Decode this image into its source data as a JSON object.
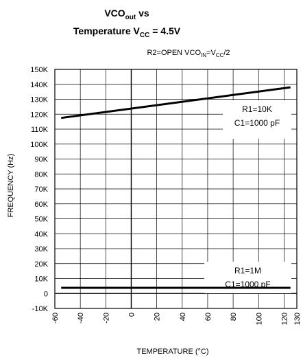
{
  "chart_data": {
    "type": "line",
    "title_line1": "VCO",
    "title_line1_sub": "out",
    "title_line1_tail": " vs",
    "title_line2_pre": "Temperature   V",
    "title_line2_sub": "CC",
    "title_line2_tail": " = 4.5V",
    "subtitle_pre": "R2=OPEN   VCO",
    "subtitle_sub1": "IN",
    "subtitle_mid": "=V",
    "subtitle_sub2": "CC",
    "subtitle_tail": "/2",
    "xlabel": "TEMPERATURE (°C)",
    "ylabel": "FREQUENCY (Hz)",
    "xlim": [
      -60,
      130
    ],
    "ylim": [
      -10000,
      150000
    ],
    "x_ticks": [
      -60,
      -40,
      -20,
      0,
      20,
      40,
      60,
      80,
      100,
      120,
      130
    ],
    "x_tick_labels": [
      "-60",
      "-40",
      "-20",
      "0",
      "20",
      "40",
      "60",
      "80",
      "100",
      "120",
      "130"
    ],
    "y_ticks": [
      -10000,
      0,
      10000,
      20000,
      30000,
      40000,
      50000,
      60000,
      70000,
      80000,
      90000,
      100000,
      110000,
      120000,
      130000,
      140000,
      150000
    ],
    "y_tick_labels": [
      "-10K",
      "0",
      "10K",
      "20K",
      "30K",
      "40K",
      "50K",
      "60K",
      "70K",
      "80K",
      "90K",
      "100K",
      "110K",
      "120K",
      "130K",
      "140K",
      "150K"
    ],
    "grid": true,
    "series": [
      {
        "name": "R1=10K C1=1000 pF",
        "x": [
          -55,
          125
        ],
        "y": [
          117500,
          138000
        ]
      },
      {
        "name": "R1=1M C1=1000 pF",
        "x": [
          -55,
          125
        ],
        "y": [
          3800,
          3800
        ]
      }
    ],
    "annotations": [
      {
        "line1": "R1=10K",
        "line2": "C1=1000 pF"
      },
      {
        "line1": "R1=1M",
        "line2": "C1=1000 pF"
      }
    ]
  }
}
